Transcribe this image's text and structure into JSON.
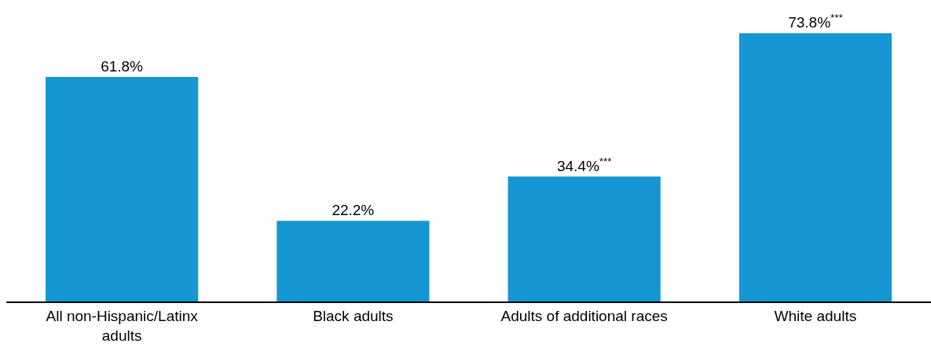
{
  "chart_data": {
    "type": "bar",
    "categories": [
      "All non-Hispanic/Latinx adults",
      "Black adults",
      "Adults of additional races",
      "White adults"
    ],
    "values": [
      61.8,
      22.2,
      34.4,
      73.8
    ],
    "value_labels": [
      "61.8%",
      "22.2%",
      "34.4%$^{***}$",
      "73.8%$^{***}$"
    ],
    "color": "#1696d2"
  }
}
